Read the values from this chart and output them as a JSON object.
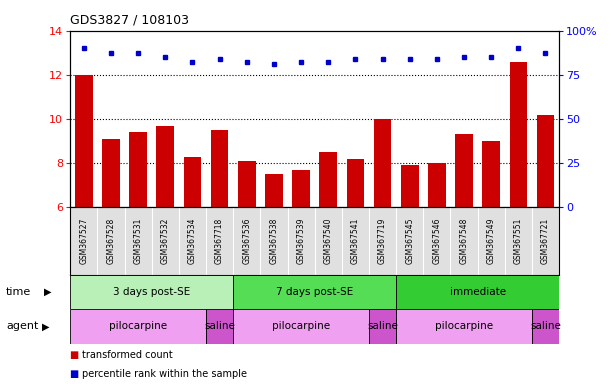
{
  "title": "GDS3827 / 108103",
  "samples": [
    "GSM367527",
    "GSM367528",
    "GSM367531",
    "GSM367532",
    "GSM367534",
    "GSM367718",
    "GSM367536",
    "GSM367538",
    "GSM367539",
    "GSM367540",
    "GSM367541",
    "GSM367719",
    "GSM367545",
    "GSM367546",
    "GSM367548",
    "GSM367549",
    "GSM367551",
    "GSM367721"
  ],
  "bar_values": [
    12.0,
    9.1,
    9.4,
    9.7,
    8.3,
    9.5,
    8.1,
    7.5,
    7.7,
    8.5,
    8.2,
    10.0,
    7.9,
    8.0,
    9.3,
    9.0,
    12.6,
    10.2
  ],
  "dot_values": [
    13.2,
    13.0,
    13.0,
    12.8,
    12.6,
    12.7,
    12.6,
    12.5,
    12.6,
    12.6,
    12.7,
    12.7,
    12.7,
    12.7,
    12.8,
    12.8,
    13.2,
    13.0
  ],
  "bar_color": "#cc0000",
  "dot_color": "#0000cc",
  "ylim_left": [
    6,
    14
  ],
  "ylim_right": [
    0,
    100
  ],
  "yticks_left": [
    6,
    8,
    10,
    12,
    14
  ],
  "yticks_right": [
    0,
    25,
    50,
    75,
    100
  ],
  "yticklabels_right": [
    "0",
    "25",
    "50",
    "75",
    "100%"
  ],
  "time_groups": [
    {
      "label": "3 days post-SE",
      "start": 0,
      "end": 5,
      "color": "#b8f0b8"
    },
    {
      "label": "7 days post-SE",
      "start": 6,
      "end": 11,
      "color": "#55dd55"
    },
    {
      "label": "immediate",
      "start": 12,
      "end": 17,
      "color": "#33cc33"
    }
  ],
  "agent_groups": [
    {
      "label": "pilocarpine",
      "start": 0,
      "end": 4,
      "color": "#f0a0f0"
    },
    {
      "label": "saline",
      "start": 5,
      "end": 5,
      "color": "#cc55cc"
    },
    {
      "label": "pilocarpine",
      "start": 6,
      "end": 10,
      "color": "#f0a0f0"
    },
    {
      "label": "saline",
      "start": 11,
      "end": 11,
      "color": "#cc55cc"
    },
    {
      "label": "pilocarpine",
      "start": 12,
      "end": 16,
      "color": "#f0a0f0"
    },
    {
      "label": "saline",
      "start": 17,
      "end": 17,
      "color": "#cc55cc"
    }
  ],
  "legend_items": [
    {
      "label": "transformed count",
      "color": "#cc0000"
    },
    {
      "label": "percentile rank within the sample",
      "color": "#0000cc"
    }
  ],
  "sample_bg_color": "#e0e0e0",
  "background_color": "#ffffff",
  "plot_bg_color": "#ffffff"
}
